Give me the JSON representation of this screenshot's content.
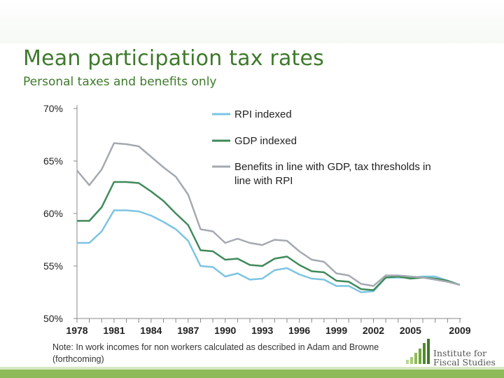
{
  "slide": {
    "title": "Mean participation tax rates",
    "subtitle": "Personal taxes and benefits only",
    "note": "Note: In work incomes for non workers calculated as described in Adam and Browne (forthcoming)",
    "logo_text_line1": "Institute for",
    "logo_text_line2": "Fiscal Studies",
    "brand_color": "#3e7a2b",
    "band_color": "#8fba58"
  },
  "chart_data": {
    "type": "line",
    "title": "",
    "xlabel": "",
    "ylabel": "",
    "x": [
      1978,
      1979,
      1980,
      1981,
      1982,
      1983,
      1984,
      1985,
      1986,
      1987,
      1988,
      1989,
      1990,
      1991,
      1992,
      1993,
      1994,
      1995,
      1996,
      1997,
      1998,
      1999,
      2000,
      2001,
      2002,
      2003,
      2004,
      2005,
      2006,
      2007,
      2008,
      2009
    ],
    "xticks": [
      1978,
      1981,
      1984,
      1987,
      1990,
      1993,
      1996,
      1999,
      2002,
      2005,
      2009
    ],
    "xtick_labels": [
      "1978",
      "1981",
      "1984",
      "1987",
      "1990",
      "1993",
      "1996",
      "1999",
      "2002",
      "2005",
      "2009"
    ],
    "xlim": [
      1978,
      2009
    ],
    "ylim": [
      50,
      70
    ],
    "yticks": [
      50,
      55,
      60,
      65,
      70
    ],
    "ytick_labels": [
      "50%",
      "55%",
      "60%",
      "65%",
      "70%"
    ],
    "grid": false,
    "legend_position": "top-right",
    "series": [
      {
        "name": "RPI indexed",
        "color": "#7cc4e2",
        "values": [
          57.2,
          57.2,
          58.3,
          60.3,
          60.3,
          60.2,
          59.8,
          59.2,
          58.5,
          57.4,
          55.0,
          54.9,
          54.0,
          54.3,
          53.7,
          53.8,
          54.6,
          54.8,
          54.2,
          53.8,
          53.7,
          53.1,
          53.1,
          52.5,
          52.6,
          53.9,
          53.9,
          53.9,
          54.0,
          54.0,
          53.6,
          53.2
        ]
      },
      {
        "name": "GDP indexed",
        "color": "#3f8a5a",
        "values": [
          59.3,
          59.3,
          60.6,
          63.0,
          63.0,
          62.9,
          62.1,
          61.2,
          60.0,
          58.9,
          56.5,
          56.4,
          55.6,
          55.7,
          55.1,
          55.0,
          55.7,
          55.9,
          55.1,
          54.5,
          54.4,
          53.6,
          53.5,
          52.8,
          52.7,
          53.9,
          54.0,
          53.8,
          53.9,
          53.8,
          53.6,
          53.2
        ]
      },
      {
        "name": "Benefits in line with GDP, tax thresholds in line with RPI",
        "color": "#a5a9b0",
        "values": [
          64.1,
          62.7,
          64.2,
          66.7,
          66.6,
          66.4,
          65.4,
          64.4,
          63.5,
          61.8,
          58.5,
          58.3,
          57.2,
          57.6,
          57.2,
          57.0,
          57.5,
          57.4,
          56.4,
          55.6,
          55.4,
          54.3,
          54.1,
          53.3,
          53.1,
          54.1,
          54.1,
          54.0,
          53.9,
          53.7,
          53.5,
          53.2
        ]
      }
    ]
  }
}
